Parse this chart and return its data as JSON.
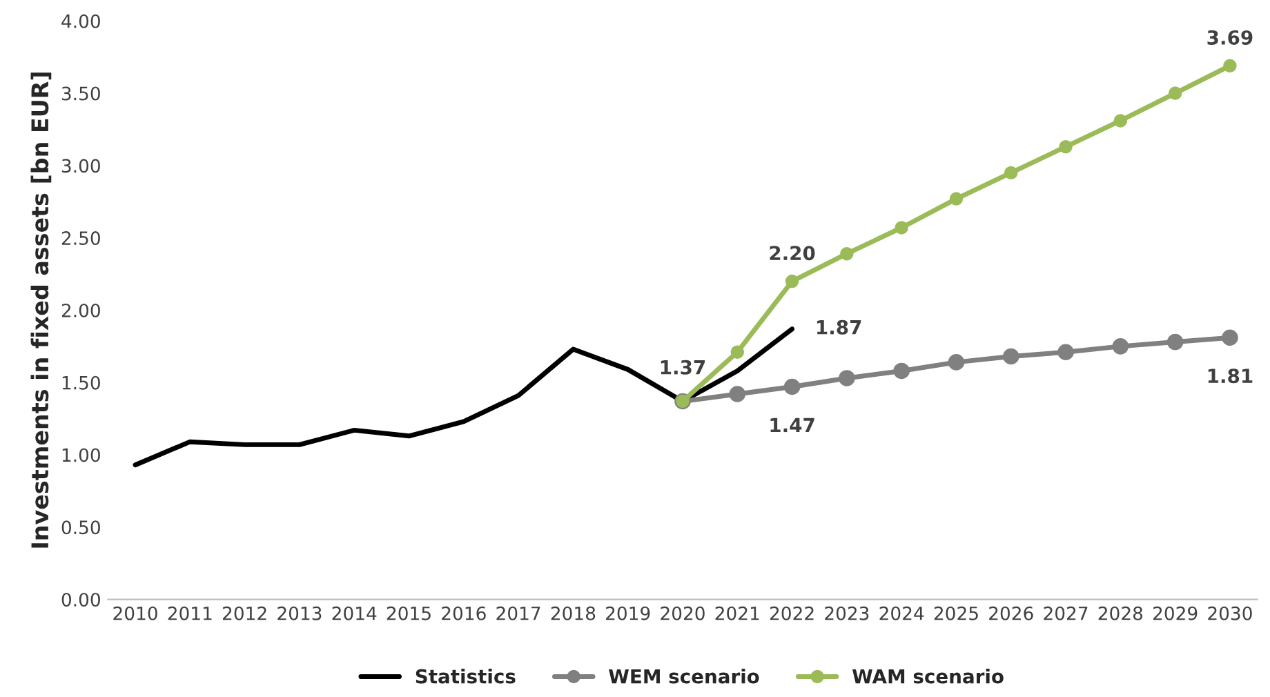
{
  "chart_data": {
    "type": "line",
    "ylabel": "Investments in fixed assets [bn EUR]",
    "categories": [
      "2010",
      "2011",
      "2012",
      "2013",
      "2014",
      "2015",
      "2016",
      "2017",
      "2018",
      "2019",
      "2020",
      "2021",
      "2022",
      "2023",
      "2024",
      "2025",
      "2026",
      "2027",
      "2028",
      "2029",
      "2030"
    ],
    "series": [
      {
        "name": "Statistics",
        "color": "#000000",
        "marker": "none",
        "values": [
          0.93,
          1.09,
          1.07,
          1.07,
          1.17,
          1.13,
          1.23,
          1.41,
          1.73,
          1.59,
          1.37,
          1.58,
          1.87,
          null,
          null,
          null,
          null,
          null,
          null,
          null,
          null
        ],
        "value_labels": [
          null,
          null,
          null,
          null,
          null,
          null,
          null,
          null,
          null,
          null,
          "1.37",
          null,
          "1.87",
          null,
          null,
          null,
          null,
          null,
          null,
          null,
          null
        ]
      },
      {
        "name": "WEM scenario",
        "color": "#808080",
        "marker": "circle",
        "values": [
          null,
          null,
          null,
          null,
          null,
          null,
          null,
          null,
          null,
          null,
          1.37,
          1.42,
          1.47,
          1.53,
          1.58,
          1.64,
          1.68,
          1.71,
          1.75,
          1.78,
          1.81
        ],
        "value_labels": [
          null,
          null,
          null,
          null,
          null,
          null,
          null,
          null,
          null,
          null,
          null,
          null,
          "1.47",
          null,
          null,
          null,
          null,
          null,
          null,
          null,
          "1.81"
        ]
      },
      {
        "name": "WAM scenario",
        "color": "#9bbb59",
        "marker": "circle",
        "values": [
          null,
          null,
          null,
          null,
          null,
          null,
          null,
          null,
          null,
          null,
          1.37,
          1.71,
          2.2,
          2.39,
          2.57,
          2.77,
          2.95,
          3.13,
          3.31,
          3.5,
          3.69
        ],
        "value_labels": [
          null,
          null,
          null,
          null,
          null,
          null,
          null,
          null,
          null,
          null,
          null,
          null,
          "2.20",
          null,
          null,
          null,
          null,
          null,
          null,
          null,
          "3.69"
        ]
      }
    ],
    "ylim": [
      0,
      4
    ],
    "yticks": [
      {
        "value": 0,
        "label": "0.00"
      },
      {
        "value": 0.5,
        "label": "0.50"
      },
      {
        "value": 1,
        "label": "1.00"
      },
      {
        "value": 1.5,
        "label": "1.50"
      },
      {
        "value": 2,
        "label": "2.00"
      },
      {
        "value": 2.5,
        "label": "2.50"
      },
      {
        "value": 3,
        "label": "3.00"
      },
      {
        "value": 3.5,
        "label": "3.50"
      },
      {
        "value": 4,
        "label": "4.00"
      }
    ],
    "grid": false,
    "legend": "bottom",
    "line_style": "solid"
  }
}
